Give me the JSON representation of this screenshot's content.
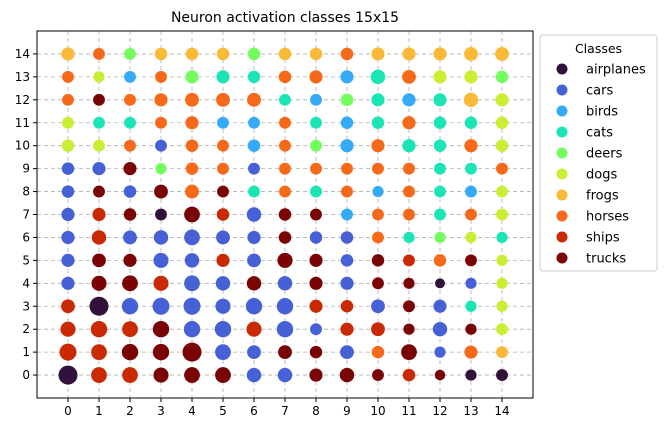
{
  "chart_data": {
    "type": "scatter",
    "title": "Neuron activation classes 15x15",
    "xlabel": "",
    "ylabel": "",
    "x_ticks": [
      0,
      1,
      2,
      3,
      4,
      5,
      6,
      7,
      8,
      9,
      10,
      11,
      12,
      13,
      14
    ],
    "y_ticks": [
      0,
      1,
      2,
      3,
      4,
      5,
      6,
      7,
      8,
      9,
      10,
      11,
      12,
      13,
      14
    ],
    "xlim": [
      -1,
      15
    ],
    "ylim": [
      -1,
      15
    ],
    "grid": true,
    "legend": {
      "title": "Classes",
      "placement": "outside-right-top",
      "classes": [
        "airplanes",
        "cars",
        "birds",
        "cats",
        "deers",
        "dogs",
        "frogs",
        "horses",
        "ships",
        "trucks"
      ]
    },
    "colors": {
      "airplanes": "#30123b",
      "cars": "#4661d6",
      "birds": "#35abf8",
      "cats": "#1be5b5",
      "deers": "#74fe5d",
      "dogs": "#c9ef34",
      "frogs": "#fbb938",
      "horses": "#f56918",
      "ships": "#c92903",
      "trucks": "#7a0403"
    },
    "size_scale": "relative activation count (0-1)",
    "grid_classes": [
      [
        "airplanes",
        "ships",
        "ships",
        "trucks",
        "trucks",
        "trucks",
        "cars",
        "cars",
        "trucks",
        "trucks",
        "trucks",
        "ships",
        "trucks",
        "airplanes",
        "airplanes"
      ],
      [
        "ships",
        "ships",
        "trucks",
        "trucks",
        "trucks",
        "cars",
        "cars",
        "trucks",
        "trucks",
        "cars",
        "horses",
        "trucks",
        "cars",
        "horses",
        "frogs"
      ],
      [
        "ships",
        "ships",
        "ships",
        "trucks",
        "cars",
        "cars",
        "ships",
        "cars",
        "cars",
        "ships",
        "ships",
        "trucks",
        "cars",
        "trucks",
        "dogs"
      ],
      [
        "ships",
        "airplanes",
        "cars",
        "cars",
        "cars",
        "cars",
        "cars",
        "cars",
        "ships",
        "ships",
        "cars",
        "trucks",
        "cars",
        "cats",
        "dogs"
      ],
      [
        "cars",
        "trucks",
        "trucks",
        "ships",
        "cars",
        "cars",
        "trucks",
        "cars",
        "trucks",
        "cars",
        "trucks",
        "trucks",
        "airplanes",
        "cars",
        "dogs"
      ],
      [
        "cars",
        "trucks",
        "trucks",
        "cars",
        "cars",
        "ships",
        "cars",
        "trucks",
        "trucks",
        "cars",
        "trucks",
        "ships",
        "horses",
        "trucks",
        "dogs"
      ],
      [
        "cars",
        "ships",
        "cars",
        "cars",
        "cars",
        "cars",
        "cars",
        "trucks",
        "cars",
        "cars",
        "horses",
        "cats",
        "deers",
        "dogs",
        "cats"
      ],
      [
        "cars",
        "ships",
        "trucks",
        "airplanes",
        "trucks",
        "ships",
        "cars",
        "trucks",
        "trucks",
        "birds",
        "horses",
        "horses",
        "cats",
        "horses",
        "dogs"
      ],
      [
        "cars",
        "trucks",
        "cars",
        "trucks",
        "horses",
        "trucks",
        "cats",
        "horses",
        "cats",
        "horses",
        "birds",
        "horses",
        "cats",
        "birds",
        "dogs"
      ],
      [
        "cars",
        "cars",
        "trucks",
        "deers",
        "horses",
        "horses",
        "cars",
        "horses",
        "horses",
        "horses",
        "horses",
        "horses",
        "cats",
        "cats",
        "horses"
      ],
      [
        "dogs",
        "dogs",
        "horses",
        "cars",
        "horses",
        "horses",
        "birds",
        "horses",
        "deers",
        "birds",
        "horses",
        "cats",
        "cats",
        "horses",
        "dogs"
      ],
      [
        "dogs",
        "cats",
        "cats",
        "horses",
        "horses",
        "birds",
        "birds",
        "horses",
        "cats",
        "birds",
        "cats",
        "horses",
        "cats",
        "cats",
        "dogs"
      ],
      [
        "horses",
        "trucks",
        "horses",
        "horses",
        "horses",
        "horses",
        "horses",
        "cats",
        "birds",
        "deers",
        "cats",
        "birds",
        "cats",
        "frogs",
        "dogs"
      ],
      [
        "horses",
        "dogs",
        "birds",
        "horses",
        "deers",
        "cats",
        "cats",
        "horses",
        "horses",
        "birds",
        "cats",
        "horses",
        "dogs",
        "dogs",
        "deers"
      ],
      [
        "frogs",
        "horses",
        "deers",
        "frogs",
        "frogs",
        "frogs",
        "deers",
        "frogs",
        "frogs",
        "horses",
        "frogs",
        "frogs",
        "frogs",
        "frogs",
        "frogs"
      ]
    ],
    "grid_sizes": [
      [
        1.0,
        0.75,
        0.75,
        0.7,
        0.75,
        0.75,
        0.65,
        0.65,
        0.55,
        0.65,
        0.45,
        0.5,
        0.35,
        0.4,
        0.45
      ],
      [
        0.85,
        0.75,
        0.8,
        0.8,
        1.0,
        0.75,
        0.6,
        0.6,
        0.5,
        0.6,
        0.5,
        0.75,
        0.4,
        0.55,
        0.45
      ],
      [
        0.7,
        0.8,
        0.75,
        0.8,
        0.8,
        0.8,
        0.7,
        0.8,
        0.45,
        0.55,
        0.6,
        0.4,
        0.65,
        0.4,
        0.45
      ],
      [
        0.6,
        1.0,
        0.8,
        0.85,
        0.85,
        0.7,
        0.8,
        0.8,
        0.55,
        0.5,
        0.6,
        0.45,
        0.55,
        0.4,
        0.4
      ],
      [
        0.55,
        0.7,
        0.75,
        0.7,
        0.75,
        0.65,
        0.65,
        0.65,
        0.55,
        0.55,
        0.45,
        0.4,
        0.3,
        0.4,
        0.4
      ],
      [
        0.55,
        0.6,
        0.55,
        0.7,
        0.65,
        0.55,
        0.6,
        0.7,
        0.55,
        0.5,
        0.5,
        0.45,
        0.5,
        0.45,
        0.4
      ],
      [
        0.55,
        0.65,
        0.6,
        0.65,
        0.75,
        0.6,
        0.55,
        0.5,
        0.5,
        0.5,
        0.45,
        0.4,
        0.4,
        0.4,
        0.4
      ],
      [
        0.55,
        0.55,
        0.5,
        0.45,
        0.75,
        0.5,
        0.65,
        0.5,
        0.45,
        0.45,
        0.45,
        0.45,
        0.45,
        0.45,
        0.45
      ],
      [
        0.5,
        0.45,
        0.5,
        0.6,
        0.6,
        0.45,
        0.45,
        0.45,
        0.45,
        0.45,
        0.4,
        0.45,
        0.45,
        0.45,
        0.45
      ],
      [
        0.5,
        0.55,
        0.55,
        0.4,
        0.5,
        0.45,
        0.45,
        0.45,
        0.45,
        0.45,
        0.45,
        0.45,
        0.45,
        0.45,
        0.45
      ],
      [
        0.5,
        0.45,
        0.45,
        0.45,
        0.5,
        0.45,
        0.5,
        0.45,
        0.45,
        0.55,
        0.55,
        0.55,
        0.5,
        0.55,
        0.5
      ],
      [
        0.45,
        0.45,
        0.45,
        0.45,
        0.55,
        0.45,
        0.45,
        0.45,
        0.45,
        0.5,
        0.5,
        0.55,
        0.5,
        0.5,
        0.5
      ],
      [
        0.45,
        0.45,
        0.45,
        0.55,
        0.6,
        0.6,
        0.6,
        0.45,
        0.45,
        0.5,
        0.55,
        0.55,
        0.55,
        0.65,
        0.55
      ],
      [
        0.45,
        0.4,
        0.45,
        0.45,
        0.55,
        0.55,
        0.5,
        0.5,
        0.55,
        0.55,
        0.65,
        0.6,
        0.55,
        0.55,
        0.5
      ],
      [
        0.55,
        0.45,
        0.45,
        0.5,
        0.5,
        0.5,
        0.5,
        0.5,
        0.5,
        0.5,
        0.55,
        0.55,
        0.55,
        0.6,
        0.6
      ]
    ]
  }
}
